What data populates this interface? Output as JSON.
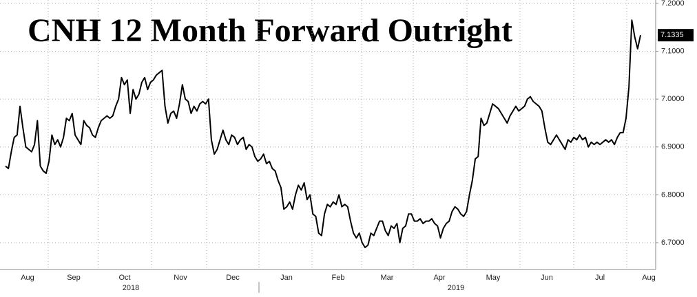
{
  "chart_data": {
    "type": "line",
    "title": "CNH 12 Month Forward Outright",
    "x_labels": [
      "Aug",
      "Sep",
      "Oct",
      "Nov",
      "Dec",
      "Jan",
      "Feb",
      "Mar",
      "Apr",
      "May",
      "Jun",
      "Jul",
      "Aug"
    ],
    "year_labels": [
      "2018",
      "2019"
    ],
    "series": [
      {
        "name": "CNH 12 Month Forward Outright",
        "color": "#000000",
        "values": [
          6.86,
          6.855,
          6.89,
          6.92,
          6.925,
          6.985,
          6.94,
          6.9,
          6.895,
          6.89,
          6.905,
          6.955,
          6.86,
          6.85,
          6.845,
          6.87,
          6.925,
          6.905,
          6.915,
          6.9,
          6.92,
          6.96,
          6.955,
          6.97,
          6.925,
          6.915,
          6.905,
          6.955,
          6.945,
          6.94,
          6.925,
          6.92,
          6.94,
          6.955,
          6.96,
          6.965,
          6.96,
          6.965,
          6.985,
          7.0,
          7.045,
          7.03,
          7.04,
          6.97,
          7.02,
          7.0,
          7.01,
          7.035,
          7.045,
          7.02,
          7.035,
          7.04,
          7.05,
          7.055,
          7.06,
          6.985,
          6.95,
          6.97,
          6.975,
          6.96,
          6.99,
          7.03,
          7.0,
          6.995,
          6.97,
          6.985,
          6.975,
          6.99,
          6.995,
          6.99,
          7.0,
          6.915,
          6.885,
          6.895,
          6.915,
          6.935,
          6.915,
          6.905,
          6.925,
          6.92,
          6.905,
          6.915,
          6.92,
          6.895,
          6.905,
          6.9,
          6.88,
          6.87,
          6.875,
          6.885,
          6.865,
          6.87,
          6.855,
          6.85,
          6.83,
          6.815,
          6.77,
          6.775,
          6.785,
          6.77,
          6.8,
          6.82,
          6.81,
          6.825,
          6.79,
          6.8,
          6.76,
          6.755,
          6.72,
          6.715,
          6.76,
          6.78,
          6.775,
          6.785,
          6.78,
          6.8,
          6.775,
          6.78,
          6.775,
          6.745,
          6.72,
          6.71,
          6.72,
          6.7,
          6.69,
          6.695,
          6.72,
          6.715,
          6.73,
          6.745,
          6.745,
          6.725,
          6.715,
          6.735,
          6.73,
          6.74,
          6.7,
          6.73,
          6.735,
          6.76,
          6.76,
          6.745,
          6.745,
          6.75,
          6.74,
          6.745,
          6.745,
          6.75,
          6.74,
          6.735,
          6.71,
          6.73,
          6.74,
          6.745,
          6.765,
          6.775,
          6.77,
          6.76,
          6.755,
          6.765,
          6.8,
          6.83,
          6.875,
          6.88,
          6.96,
          6.945,
          6.95,
          6.97,
          6.99,
          6.985,
          6.98,
          6.97,
          6.96,
          6.95,
          6.965,
          6.975,
          6.985,
          6.975,
          6.98,
          6.985,
          7.0,
          7.005,
          6.995,
          6.99,
          6.985,
          6.975,
          6.94,
          6.91,
          6.905,
          6.915,
          6.925,
          6.915,
          6.905,
          6.895,
          6.915,
          6.91,
          6.92,
          6.915,
          6.925,
          6.915,
          6.92,
          6.9,
          6.91,
          6.905,
          6.91,
          6.905,
          6.91,
          6.915,
          6.91,
          6.915,
          6.905,
          6.92,
          6.93,
          6.93,
          6.96,
          7.025,
          7.165,
          7.13,
          7.105,
          7.1335
        ],
        "last_label": "7.1335"
      }
    ],
    "ylim": [
      6.644,
      7.207
    ],
    "yticks": [
      {
        "value": 6.7,
        "label": "6.7000"
      },
      {
        "value": 6.8,
        "label": "6.8000"
      },
      {
        "value": 6.9,
        "label": "6.9000"
      },
      {
        "value": 7.0,
        "label": "7.0000"
      },
      {
        "value": 7.1,
        "label": "7.1000"
      },
      {
        "value": 7.2,
        "label": "7.2000"
      }
    ],
    "grid": true
  }
}
